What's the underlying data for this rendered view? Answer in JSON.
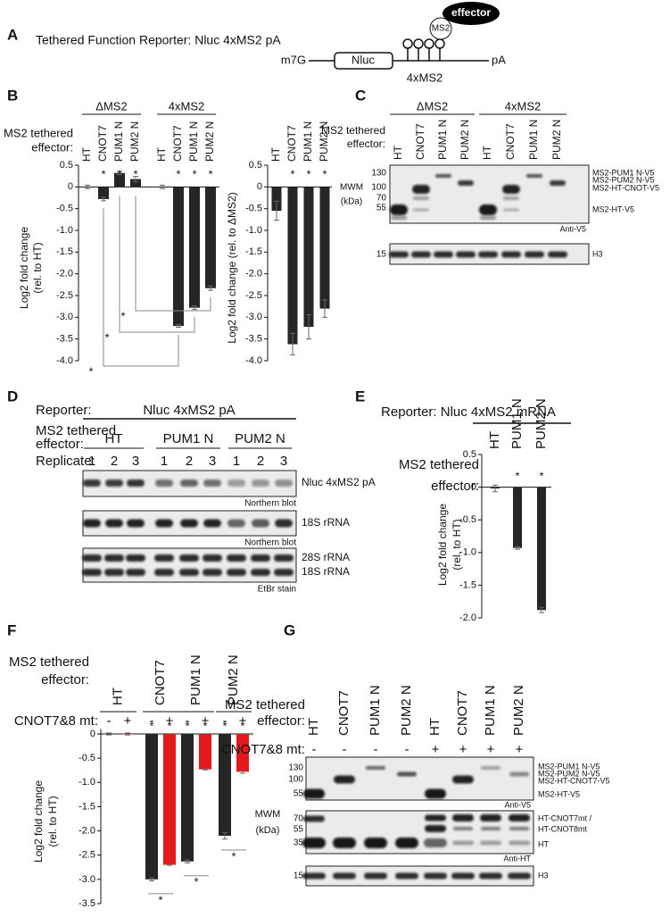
{
  "panel_labels": [
    "A",
    "B",
    "C",
    "D",
    "E",
    "F",
    "G"
  ],
  "panel_a": {
    "title": "Tethered Function Reporter: Nluc 4xMS2 pA",
    "effector": "effector",
    "ms2": "MS2",
    "cap": "m7G",
    "gene": "Nluc",
    "loops": "4xMS2",
    "tail": "pA"
  },
  "chart_data": [
    {
      "type": "bar",
      "ylabel": [
        "Log2 fold change",
        "(rel. to HT)"
      ],
      "effector_label": [
        "MS2 tethered",
        "effector:"
      ],
      "groups": [
        "ΔMS2",
        "4xMS2"
      ],
      "categories": [
        "HT",
        "CNOT7",
        "PUM1 N",
        "PUM2 N",
        "HT",
        "CNOT7",
        "PUM1 N",
        "PUM2 N"
      ],
      "values": [
        0.0,
        -0.28,
        0.32,
        0.18,
        0.0,
        -3.2,
        -2.78,
        -2.33
      ],
      "errors": [
        0.04,
        0.04,
        0.04,
        0.06,
        0.04,
        0.03,
        0.04,
        0.05
      ],
      "annotations": [
        null,
        "*",
        "*",
        "*",
        null,
        "*",
        "*",
        "*"
      ],
      "bracket_labels": [
        "*",
        "*",
        "*"
      ],
      "color": "#262626",
      "ylim": [
        -4,
        0.5
      ],
      "yticks": [
        0.5,
        0,
        -0.5,
        {
          "value": -1,
          "label": "-1.0"
        },
        -1.5,
        {
          "value": -2,
          "label": "-2.0"
        },
        -2.5,
        {
          "value": -3,
          "label": "-3.0"
        },
        -3.5,
        {
          "value": -4,
          "label": "-4.0"
        }
      ]
    },
    {
      "type": "bar",
      "ylabel": [
        "Log2 fold change (rel. to ΔMS2)"
      ],
      "categories": [
        "HT",
        "CNOT7",
        "PUM1 N",
        "PUM2 N"
      ],
      "values": [
        -0.55,
        -3.62,
        -3.22,
        -2.8
      ],
      "errors": [
        0.22,
        0.25,
        0.28,
        0.2
      ],
      "annotations": [
        null,
        "*",
        "*",
        "*"
      ],
      "color": "#262626",
      "ylim": [
        -4,
        0.5
      ],
      "yticks": [
        0.5,
        0,
        -0.5,
        {
          "value": -1,
          "label": "-1.0"
        },
        -1.5,
        {
          "value": -2,
          "label": "-2.0"
        },
        -2.5,
        {
          "value": -3,
          "label": "-3.0"
        },
        -3.5,
        {
          "value": -4,
          "label": "-4.0"
        }
      ]
    },
    {
      "type": "bar",
      "title": "Reporter: Nluc 4xMS2 mRNA",
      "ylabel": [
        "Log2 fold change",
        "(rel. to HT)"
      ],
      "effector_label": [
        "MS2 tethered",
        "effector:"
      ],
      "categories": [
        "HT",
        "PUM1 N",
        "PUM2 N"
      ],
      "values": [
        -0.02,
        -0.93,
        -1.88
      ],
      "errors": [
        0.05,
        0.02,
        0.04
      ],
      "annotations": [
        null,
        "*",
        "*"
      ],
      "color": "#262626",
      "ylim": [
        -2,
        0.5
      ],
      "yticks": [
        0.5,
        0,
        -0.5,
        {
          "value": -1,
          "label": "-1.0"
        },
        -1.5,
        {
          "value": -2,
          "label": "-2.0"
        }
      ]
    },
    {
      "type": "bar",
      "ylabel": [
        "Log2 fold change",
        "(rel. to HT)"
      ],
      "effector_label": [
        "MS2 tethered",
        "effector:"
      ],
      "legend_title": "CNOT7&8 mt:",
      "categories": [
        "HT",
        "CNOT7",
        "PUM1 N",
        "PUM2 N"
      ],
      "series": [
        {
          "name": "-",
          "color": "#262626",
          "values": [
            0.0,
            -3.0,
            -2.63,
            -2.1
          ],
          "errors": [
            0.02,
            0.03,
            0.03,
            0.07
          ],
          "annotations": [
            null,
            "*",
            "*",
            "*"
          ]
        },
        {
          "name": "+",
          "color": "#e3191b",
          "values": [
            0.0,
            -2.7,
            -0.73,
            -0.78
          ],
          "errors": [
            0.02,
            0.01,
            0.01,
            0.03
          ],
          "annotations": [
            null,
            "*",
            "*",
            "*"
          ]
        }
      ],
      "bracket_labels": [
        "*",
        "*",
        "*"
      ],
      "ylim": [
        -3.5,
        0.1
      ],
      "yticks": [
        0,
        -0.5,
        {
          "value": -1,
          "label": "-1.0"
        },
        -1.5,
        {
          "value": -2,
          "label": "-2.0"
        },
        -2.5,
        {
          "value": -3,
          "label": "-3.0"
        },
        -3.5
      ]
    }
  ],
  "panel_c": {
    "effector_label": [
      "MS2 tethered",
      "effector:"
    ],
    "groups": [
      "ΔMS2",
      "4xMS2"
    ],
    "lanes": [
      "HT",
      "CNOT7",
      "PUM1 N",
      "PUM2 N",
      "HT",
      "CNOT7",
      "PUM1 N",
      "PUM2 N"
    ],
    "mwm": [
      "MWM",
      "(kDa)"
    ],
    "blots": [
      {
        "markers": [
          "130",
          "100",
          "70",
          "55"
        ],
        "labels": [
          "MS2-PUM1 N-V5",
          "MS2-PUM2 N-V5",
          "MS2-HT-CNOT-V5",
          "MS2-HT-V5"
        ],
        "antibody": "Anti-V5"
      },
      {
        "markers": [
          "15"
        ],
        "labels": [
          "H3"
        ]
      }
    ]
  },
  "panel_d": {
    "reporter_label": "Reporter:",
    "reporter": "Nluc 4xMS2 pA",
    "effector_label": [
      "MS2 tethered",
      "effector:"
    ],
    "groups": [
      "HT",
      "PUM1 N",
      "PUM2 N"
    ],
    "replicate_label": "Replicate:",
    "replicates": [
      "1",
      "2",
      "3",
      "1",
      "2",
      "3",
      "1",
      "2",
      "3"
    ],
    "blots": [
      {
        "labels": [
          "Nluc 4xMS2 pA"
        ],
        "method": "Northern blot"
      },
      {
        "labels": [
          "18S rRNA"
        ],
        "method": "Northern blot"
      },
      {
        "labels": [
          "28S rRNA",
          "18S rRNA"
        ],
        "method": "EtBr stain"
      }
    ]
  },
  "panel_g": {
    "effector_label": [
      "MS2 tethered",
      "effector:"
    ],
    "lanes": [
      "HT",
      "CNOT7",
      "PUM1 N",
      "PUM2 N",
      "HT",
      "CNOT7",
      "PUM1 N",
      "PUM2 N"
    ],
    "mutant_label": "CNOT7&8 mt:",
    "mutant": [
      "-",
      "-",
      "-",
      "-",
      "+",
      "+",
      "+",
      "+"
    ],
    "mwm": [
      "MWM",
      "(kDa)"
    ],
    "blots": [
      {
        "markers": [
          "130",
          "100",
          "55"
        ],
        "labels": [
          "MS2-PUM1 N-V5",
          "MS2-PUM2 N-V5",
          "MS2-HT-CNOT7-V5",
          "MS2-HT-V5"
        ],
        "antibody": "Anti-V5"
      },
      {
        "markers": [
          "70",
          "55",
          "35"
        ],
        "labels": [
          "HT-CNOT7mt /",
          "HT-CNOT8mt",
          "HT"
        ],
        "antibody": "Anti-HT"
      },
      {
        "markers": [
          "15"
        ],
        "labels": [
          "H3"
        ]
      }
    ]
  }
}
